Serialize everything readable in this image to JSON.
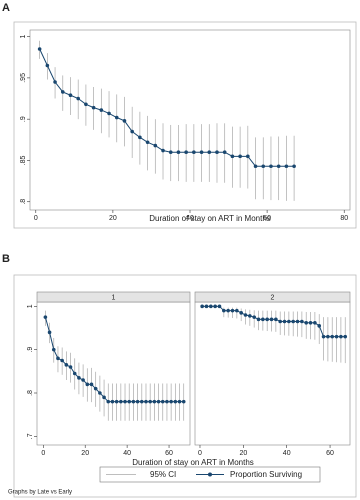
{
  "panel_labels": [
    "A",
    "B"
  ],
  "legend": [
    "95% CI",
    "Proportion Surviving"
  ],
  "note": "Graphs by Late vs Early",
  "chart_data": [
    {
      "type": "line",
      "x_label": "Duration of stay on ART in Months",
      "color": "#1a476f",
      "ci_color": "#a8a8a8",
      "xlim": [
        -1.5,
        81.5
      ],
      "ylim": [
        0.79,
        1.008
      ],
      "xticks": [
        0,
        20,
        40,
        60,
        80
      ],
      "yticks": [
        {
          "value": 0.8,
          "label": ".8"
        },
        {
          "value": 0.85,
          "label": ".85"
        },
        {
          "value": 0.9,
          "label": ".9"
        },
        {
          "value": 0.95,
          "label": ".95"
        },
        1
      ],
      "x": [
        1,
        3,
        5,
        7,
        9,
        11,
        13,
        15,
        17,
        19,
        21,
        23,
        25,
        27,
        29,
        31,
        33,
        35,
        37,
        39,
        41,
        43,
        45,
        47,
        49,
        51,
        53,
        55,
        57,
        59,
        61,
        63,
        65,
        67
      ],
      "values": [
        0.985,
        0.965,
        0.945,
        0.933,
        0.929,
        0.925,
        0.918,
        0.914,
        0.911,
        0.907,
        0.902,
        0.898,
        0.885,
        0.878,
        0.872,
        0.868,
        0.862,
        0.86,
        0.86,
        0.86,
        0.86,
        0.86,
        0.86,
        0.86,
        0.86,
        0.855,
        0.855,
        0.855,
        0.843,
        0.843,
        0.843,
        0.843,
        0.843,
        0.843
      ],
      "ci_lower": [
        0.973,
        0.948,
        0.925,
        0.91,
        0.905,
        0.9,
        0.892,
        0.887,
        0.883,
        0.878,
        0.872,
        0.867,
        0.853,
        0.845,
        0.838,
        0.834,
        0.827,
        0.825,
        0.825,
        0.824,
        0.824,
        0.824,
        0.824,
        0.823,
        0.823,
        0.817,
        0.817,
        0.816,
        0.803,
        0.803,
        0.802,
        0.802,
        0.801,
        0.801
      ],
      "ci_upper": [
        0.995,
        0.98,
        0.963,
        0.953,
        0.951,
        0.948,
        0.942,
        0.939,
        0.937,
        0.934,
        0.93,
        0.927,
        0.915,
        0.909,
        0.904,
        0.9,
        0.895,
        0.893,
        0.893,
        0.894,
        0.894,
        0.894,
        0.894,
        0.895,
        0.895,
        0.891,
        0.891,
        0.892,
        0.878,
        0.878,
        0.879,
        0.879,
        0.88,
        0.88
      ]
    },
    {
      "type": "line",
      "strip": "1",
      "x_label": "Duration of stay on ART in Months",
      "color": "#1a476f",
      "ci_color": "#a8a8a8",
      "xlim": [
        -3,
        70
      ],
      "ylim": [
        0.68,
        1.01
      ],
      "xticks": [
        0,
        20,
        40,
        60
      ],
      "yticks": [
        {
          "value": 0.7,
          "label": ".7"
        },
        {
          "value": 0.8,
          "label": ".8"
        },
        {
          "value": 0.9,
          "label": ".9"
        },
        1
      ],
      "x": [
        1,
        3,
        5,
        7,
        9,
        11,
        13,
        15,
        17,
        19,
        21,
        23,
        25,
        27,
        29,
        31,
        33,
        35,
        37,
        39,
        41,
        43,
        45,
        47,
        49,
        51,
        53,
        55,
        57,
        59,
        61,
        63,
        65,
        67
      ],
      "values": [
        0.975,
        0.94,
        0.9,
        0.88,
        0.875,
        0.865,
        0.86,
        0.845,
        0.835,
        0.83,
        0.82,
        0.82,
        0.81,
        0.8,
        0.79,
        0.78,
        0.78,
        0.78,
        0.78,
        0.78,
        0.78,
        0.78,
        0.78,
        0.78,
        0.78,
        0.78,
        0.78,
        0.78,
        0.78,
        0.78,
        0.78,
        0.78,
        0.78,
        0.78
      ],
      "ci_lower": [
        0.955,
        0.915,
        0.87,
        0.848,
        0.842,
        0.83,
        0.824,
        0.808,
        0.797,
        0.791,
        0.78,
        0.779,
        0.768,
        0.757,
        0.746,
        0.736,
        0.736,
        0.736,
        0.736,
        0.736,
        0.736,
        0.736,
        0.736,
        0.736,
        0.736,
        0.736,
        0.736,
        0.736,
        0.736,
        0.736,
        0.736,
        0.736,
        0.736,
        0.736
      ],
      "ci_upper": [
        0.99,
        0.962,
        0.927,
        0.908,
        0.905,
        0.896,
        0.893,
        0.88,
        0.87,
        0.866,
        0.857,
        0.858,
        0.849,
        0.84,
        0.831,
        0.822,
        0.822,
        0.822,
        0.822,
        0.822,
        0.822,
        0.822,
        0.822,
        0.822,
        0.822,
        0.822,
        0.822,
        0.822,
        0.822,
        0.822,
        0.822,
        0.822,
        0.822,
        0.822
      ]
    },
    {
      "type": "line",
      "strip": "2",
      "color": "#1a476f",
      "ci_color": "#a8a8a8",
      "xlim": [
        -2.3,
        69.2
      ],
      "ylim": [
        0.68,
        1.01
      ],
      "xticks": [
        0,
        20,
        40,
        60
      ],
      "x": [
        1,
        3,
        5,
        7,
        9,
        11,
        13,
        15,
        17,
        19,
        21,
        23,
        25,
        27,
        29,
        31,
        33,
        35,
        37,
        39,
        41,
        43,
        45,
        47,
        49,
        51,
        53,
        55,
        57,
        59,
        61,
        63,
        65,
        67
      ],
      "values": [
        1,
        1,
        1,
        1,
        1,
        0.99,
        0.99,
        0.99,
        0.99,
        0.985,
        0.98,
        0.978,
        0.975,
        0.97,
        0.97,
        0.97,
        0.97,
        0.97,
        0.965,
        0.965,
        0.965,
        0.965,
        0.965,
        0.965,
        0.962,
        0.962,
        0.962,
        0.955,
        0.93,
        0.93,
        0.93,
        0.93,
        0.93,
        0.93
      ],
      "ci_lower": [
        1,
        1,
        1,
        1,
        1,
        0.975,
        0.974,
        0.973,
        0.972,
        0.966,
        0.958,
        0.955,
        0.951,
        0.945,
        0.944,
        0.943,
        0.942,
        0.941,
        0.934,
        0.933,
        0.932,
        0.931,
        0.93,
        0.929,
        0.925,
        0.924,
        0.923,
        0.913,
        0.875,
        0.873,
        0.872,
        0.871,
        0.87,
        0.869
      ],
      "ci_upper": [
        1,
        1,
        1,
        1,
        1,
        0.997,
        0.997,
        0.997,
        0.997,
        0.995,
        0.993,
        0.992,
        0.991,
        0.99,
        0.99,
        0.99,
        0.99,
        0.99,
        0.988,
        0.988,
        0.988,
        0.988,
        0.988,
        0.988,
        0.987,
        0.987,
        0.987,
        0.982,
        0.975,
        0.975,
        0.975,
        0.975,
        0.975,
        0.975
      ]
    }
  ]
}
